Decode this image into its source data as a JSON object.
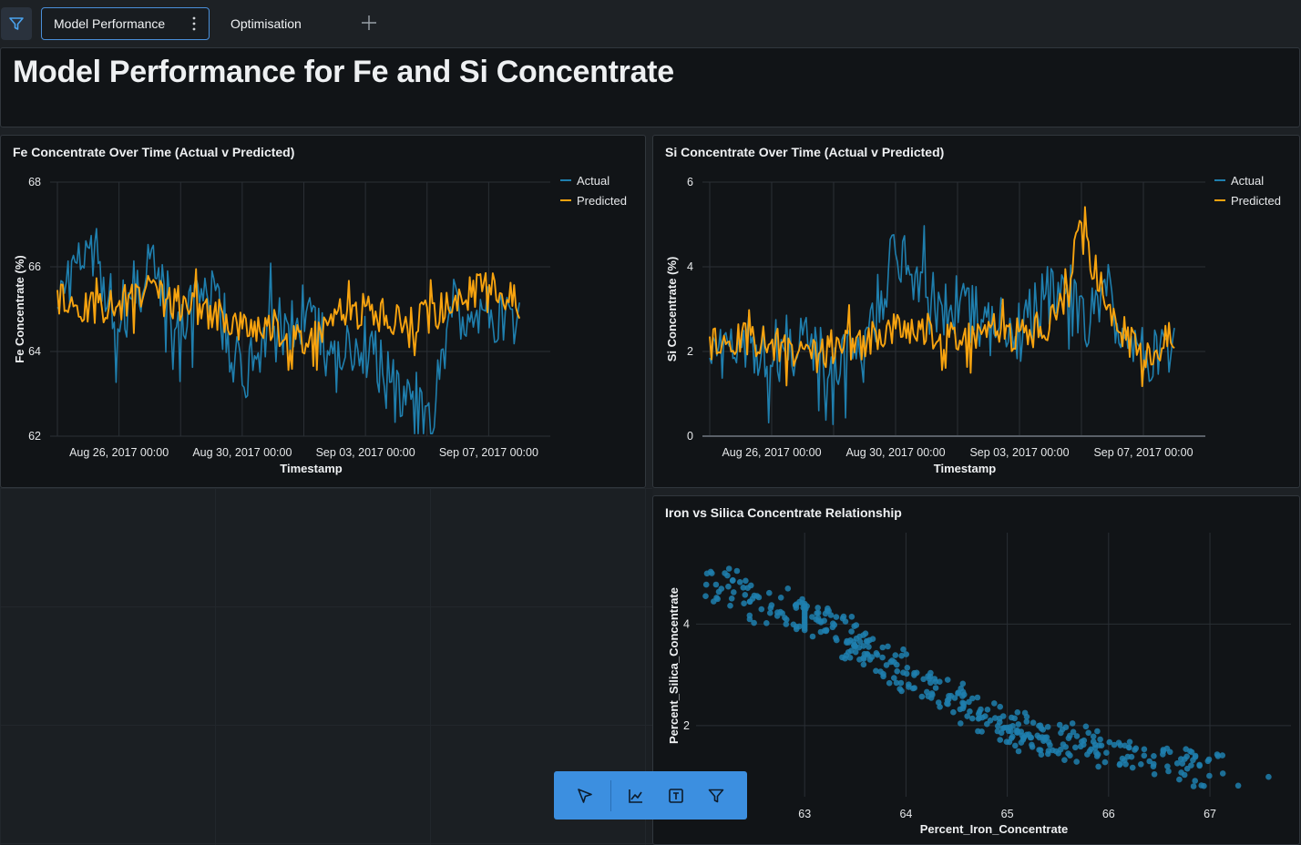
{
  "tabs": {
    "active_label": "Model Performance",
    "second_label": "Optimisation"
  },
  "page": {
    "title": "Model Performance for Fe and Si Concentrate"
  },
  "colors": {
    "actual": "#1f7fae",
    "predicted": "#f7a30f",
    "accent": "#3c8fe0"
  },
  "icons": [
    "filter-icon",
    "more-vertical-icon",
    "plus-icon",
    "pointer-icon",
    "line-chart-icon",
    "text-box-icon",
    "filter-icon"
  ],
  "chart_data": [
    {
      "type": "line",
      "title": "Fe Concentrate Over Time (Actual v Predicted)",
      "xlabel": "Timestamp",
      "ylabel": "Fe Concentrate (%)",
      "x_ticks": [
        "Aug 26, 2017 00:00",
        "Aug 30, 2017 00:00",
        "Sep 03, 2017 00:00",
        "Sep 07, 2017 00:00"
      ],
      "y_ticks": [
        "62",
        "64",
        "66",
        "68"
      ],
      "ylim": [
        62,
        68
      ],
      "xlim": [
        "2017-08-24",
        "2017-09-09"
      ],
      "legend": "top-right",
      "grid": true,
      "series": [
        {
          "name": "Actual",
          "x": [
            "2017-08-24",
            "2017-08-25",
            "2017-08-26",
            "2017-08-27",
            "2017-08-28",
            "2017-08-29",
            "2017-08-30",
            "2017-08-31",
            "2017-09-01",
            "2017-09-02",
            "2017-09-03",
            "2017-09-04",
            "2017-09-05",
            "2017-09-06",
            "2017-09-07",
            "2017-09-08"
          ],
          "values": [
            65.0,
            66.8,
            64.8,
            66.0,
            64.6,
            65.5,
            63.4,
            64.5,
            64.8,
            63.7,
            64.2,
            63.0,
            62.2,
            65.0,
            64.8,
            64.6
          ]
        },
        {
          "name": "Predicted",
          "x": [
            "2017-08-24",
            "2017-08-25",
            "2017-08-26",
            "2017-08-27",
            "2017-08-28",
            "2017-08-29",
            "2017-08-30",
            "2017-08-31",
            "2017-09-01",
            "2017-09-02",
            "2017-09-03",
            "2017-09-04",
            "2017-09-05",
            "2017-09-06",
            "2017-09-07",
            "2017-09-08"
          ],
          "values": [
            65.2,
            65.0,
            65.1,
            65.4,
            65.0,
            64.9,
            64.6,
            64.6,
            64.2,
            64.8,
            65.0,
            64.7,
            64.8,
            65.2,
            65.6,
            65.1
          ]
        }
      ]
    },
    {
      "type": "line",
      "title": "Si Concentrate Over Time (Actual v Predicted)",
      "xlabel": "Timestamp",
      "ylabel": "Si Concentrate (%)",
      "x_ticks": [
        "Aug 26, 2017 00:00",
        "Aug 30, 2017 00:00",
        "Sep 03, 2017 00:00",
        "Sep 07, 2017 00:00"
      ],
      "y_ticks": [
        "0",
        "2",
        "4",
        "6"
      ],
      "ylim": [
        0,
        6
      ],
      "xlim": [
        "2017-08-24",
        "2017-09-09"
      ],
      "legend": "top-right",
      "grid": true,
      "series": [
        {
          "name": "Actual",
          "x": [
            "2017-08-24",
            "2017-08-25",
            "2017-08-26",
            "2017-08-27",
            "2017-08-28",
            "2017-08-29",
            "2017-08-30",
            "2017-08-31",
            "2017-09-01",
            "2017-09-02",
            "2017-09-03",
            "2017-09-04",
            "2017-09-05",
            "2017-09-06",
            "2017-09-07",
            "2017-09-08"
          ],
          "values": [
            1.8,
            2.4,
            2.0,
            2.2,
            1.6,
            2.0,
            4.5,
            3.2,
            3.0,
            2.6,
            2.5,
            3.4,
            2.8,
            3.0,
            1.8,
            2.0
          ]
        },
        {
          "name": "Predicted",
          "x": [
            "2017-08-24",
            "2017-08-25",
            "2017-08-26",
            "2017-08-27",
            "2017-08-28",
            "2017-08-29",
            "2017-08-30",
            "2017-08-31",
            "2017-09-01",
            "2017-09-02",
            "2017-09-03",
            "2017-09-04",
            "2017-09-05",
            "2017-09-06",
            "2017-09-07",
            "2017-09-08"
          ],
          "values": [
            2.1,
            2.3,
            2.2,
            1.8,
            2.0,
            2.2,
            2.6,
            2.5,
            2.3,
            2.5,
            2.4,
            2.6,
            4.8,
            2.8,
            1.8,
            2.4
          ]
        }
      ]
    },
    {
      "type": "scatter",
      "title": "Iron vs Silica Concentrate Relationship",
      "xlabel": "Percent_Iron_Concentrate",
      "ylabel": "Percent_Silica_Concentrate",
      "x_ticks": [
        "63",
        "64",
        "65",
        "66",
        "67"
      ],
      "y_ticks": [
        "2",
        "4"
      ],
      "grid": true,
      "series": [
        {
          "name": "",
          "x": [
            62.1,
            62.2,
            62.5,
            62.8,
            63.0,
            63.2,
            63.4,
            63.5,
            63.6,
            63.8,
            64.0,
            64.2,
            64.4,
            64.6,
            64.8,
            65.0,
            65.1,
            65.2,
            65.4,
            65.6,
            65.8,
            66.0,
            66.2,
            66.5,
            66.8,
            67.1,
            67.6
          ],
          "y": [
            4.7,
            4.8,
            4.3,
            4.4,
            4.0,
            4.1,
            3.8,
            3.6,
            3.5,
            3.3,
            3.0,
            2.8,
            2.6,
            2.4,
            2.2,
            2.0,
            1.9,
            1.7,
            1.8,
            1.7,
            1.6,
            1.5,
            1.4,
            1.3,
            1.2,
            1.1,
            0.9
          ]
        }
      ]
    }
  ]
}
